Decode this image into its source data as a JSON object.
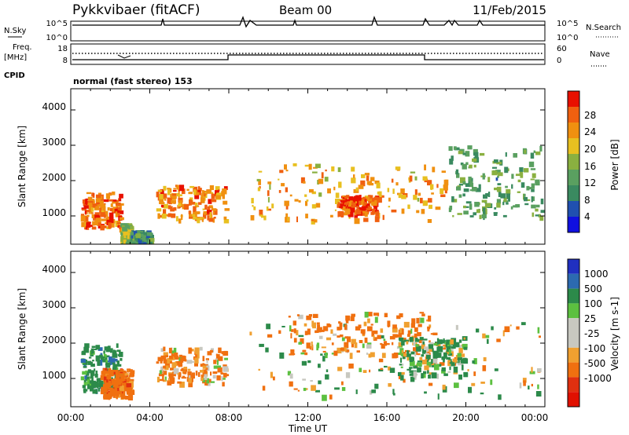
{
  "header": {
    "station": "Pykkvibaer (fitACF)",
    "beam": "Beam 00",
    "date": "11/Feb/2015"
  },
  "strip": {
    "nsky_label": "N.Sky",
    "nsky_ticks": [
      "10^5",
      "10^0"
    ],
    "nsearch_label": "N.Search",
    "nsearch_ticks": [
      "10^5",
      "10^0"
    ],
    "freq_label": "Freq.",
    "freq_unit": "[MHz]",
    "freq_ticks": [
      "18",
      "8"
    ],
    "nave_label": "Nave",
    "nave_ticks": [
      "60",
      "0"
    ],
    "cpid_label": "CPID",
    "cpid_value": "normal (fast stereo) 153"
  },
  "colors": {
    "power_scale": [
      "#1010e0",
      "#2050b0",
      "#3a8a60",
      "#5aa060",
      "#8ab040",
      "#e8c020",
      "#f09010",
      "#f06010",
      "#e81000"
    ],
    "velocity_scale": [
      "#2030c0",
      "#2c6ab0",
      "#2c8a4a",
      "#5cc040",
      "#c8c8c0",
      "#c8c8c0",
      "#f0a030",
      "#f07010",
      "#e03010",
      "#e01000"
    ]
  },
  "chart_data": [
    {
      "type": "heatmap",
      "title": "",
      "xlabel": "",
      "ylabel": "Slant Range [km]",
      "x_ticks": [
        "00:00",
        "04:00",
        "08:00",
        "12:00",
        "16:00",
        "20:00",
        "00:00"
      ],
      "y_ticks": [
        "1000",
        "2000",
        "3000",
        "4000"
      ],
      "ylim": [
        200,
        4600
      ],
      "colorbar": {
        "label": "Power [dB]",
        "ticks": [
          "4",
          "8",
          "12",
          "16",
          "20",
          "24",
          "28"
        ],
        "range": [
          0,
          32
        ]
      },
      "patches": [
        {
          "x": [
            0.5,
            2.5
          ],
          "y": [
            700,
            1700
          ],
          "value": 26
        },
        {
          "x": [
            2.5,
            3.0
          ],
          "y": [
            300,
            800
          ],
          "value": 16
        },
        {
          "x": [
            3.0,
            4.0
          ],
          "y": [
            300,
            600
          ],
          "value": 10
        },
        {
          "x": [
            4.3,
            7.8
          ],
          "y": [
            900,
            1900
          ],
          "value": 24
        },
        {
          "x": [
            9.0,
            19.0
          ],
          "y": [
            900,
            2500
          ],
          "value": 22
        },
        {
          "x": [
            13.5,
            15.5
          ],
          "y": [
            1100,
            1600
          ],
          "value": 28
        },
        {
          "x": [
            19.0,
            23.8
          ],
          "y": [
            1000,
            3000
          ],
          "value": 12
        }
      ]
    },
    {
      "type": "heatmap",
      "title": "",
      "xlabel": "Time UT",
      "ylabel": "Slant Range [km]",
      "x_ticks": [
        "00:00",
        "04:00",
        "08:00",
        "12:00",
        "16:00",
        "20:00",
        "00:00"
      ],
      "y_ticks": [
        "1000",
        "2000",
        "3000",
        "4000"
      ],
      "ylim": [
        200,
        4600
      ],
      "colorbar": {
        "label": "Velocity [m s-1]",
        "ticks": [
          "1000",
          "500",
          "100",
          "25",
          "-25",
          "-100",
          "-500",
          "-1000"
        ],
        "range": [
          -1000,
          1000
        ]
      },
      "patches": [
        {
          "x": [
            0.5,
            2.5
          ],
          "y": [
            700,
            2000
          ],
          "value": 300
        },
        {
          "x": [
            1.5,
            3.0
          ],
          "y": [
            500,
            1300
          ],
          "value": -300
        },
        {
          "x": [
            4.3,
            7.8
          ],
          "y": [
            900,
            1900
          ],
          "value": -200
        },
        {
          "x": [
            9.0,
            23.8
          ],
          "y": [
            500,
            2600
          ],
          "value": 0
        },
        {
          "x": [
            11.0,
            18.5
          ],
          "y": [
            1700,
            2900
          ],
          "value": -200
        },
        {
          "x": [
            16.5,
            20.0
          ],
          "y": [
            1100,
            2200
          ],
          "value": 150
        }
      ]
    }
  ]
}
